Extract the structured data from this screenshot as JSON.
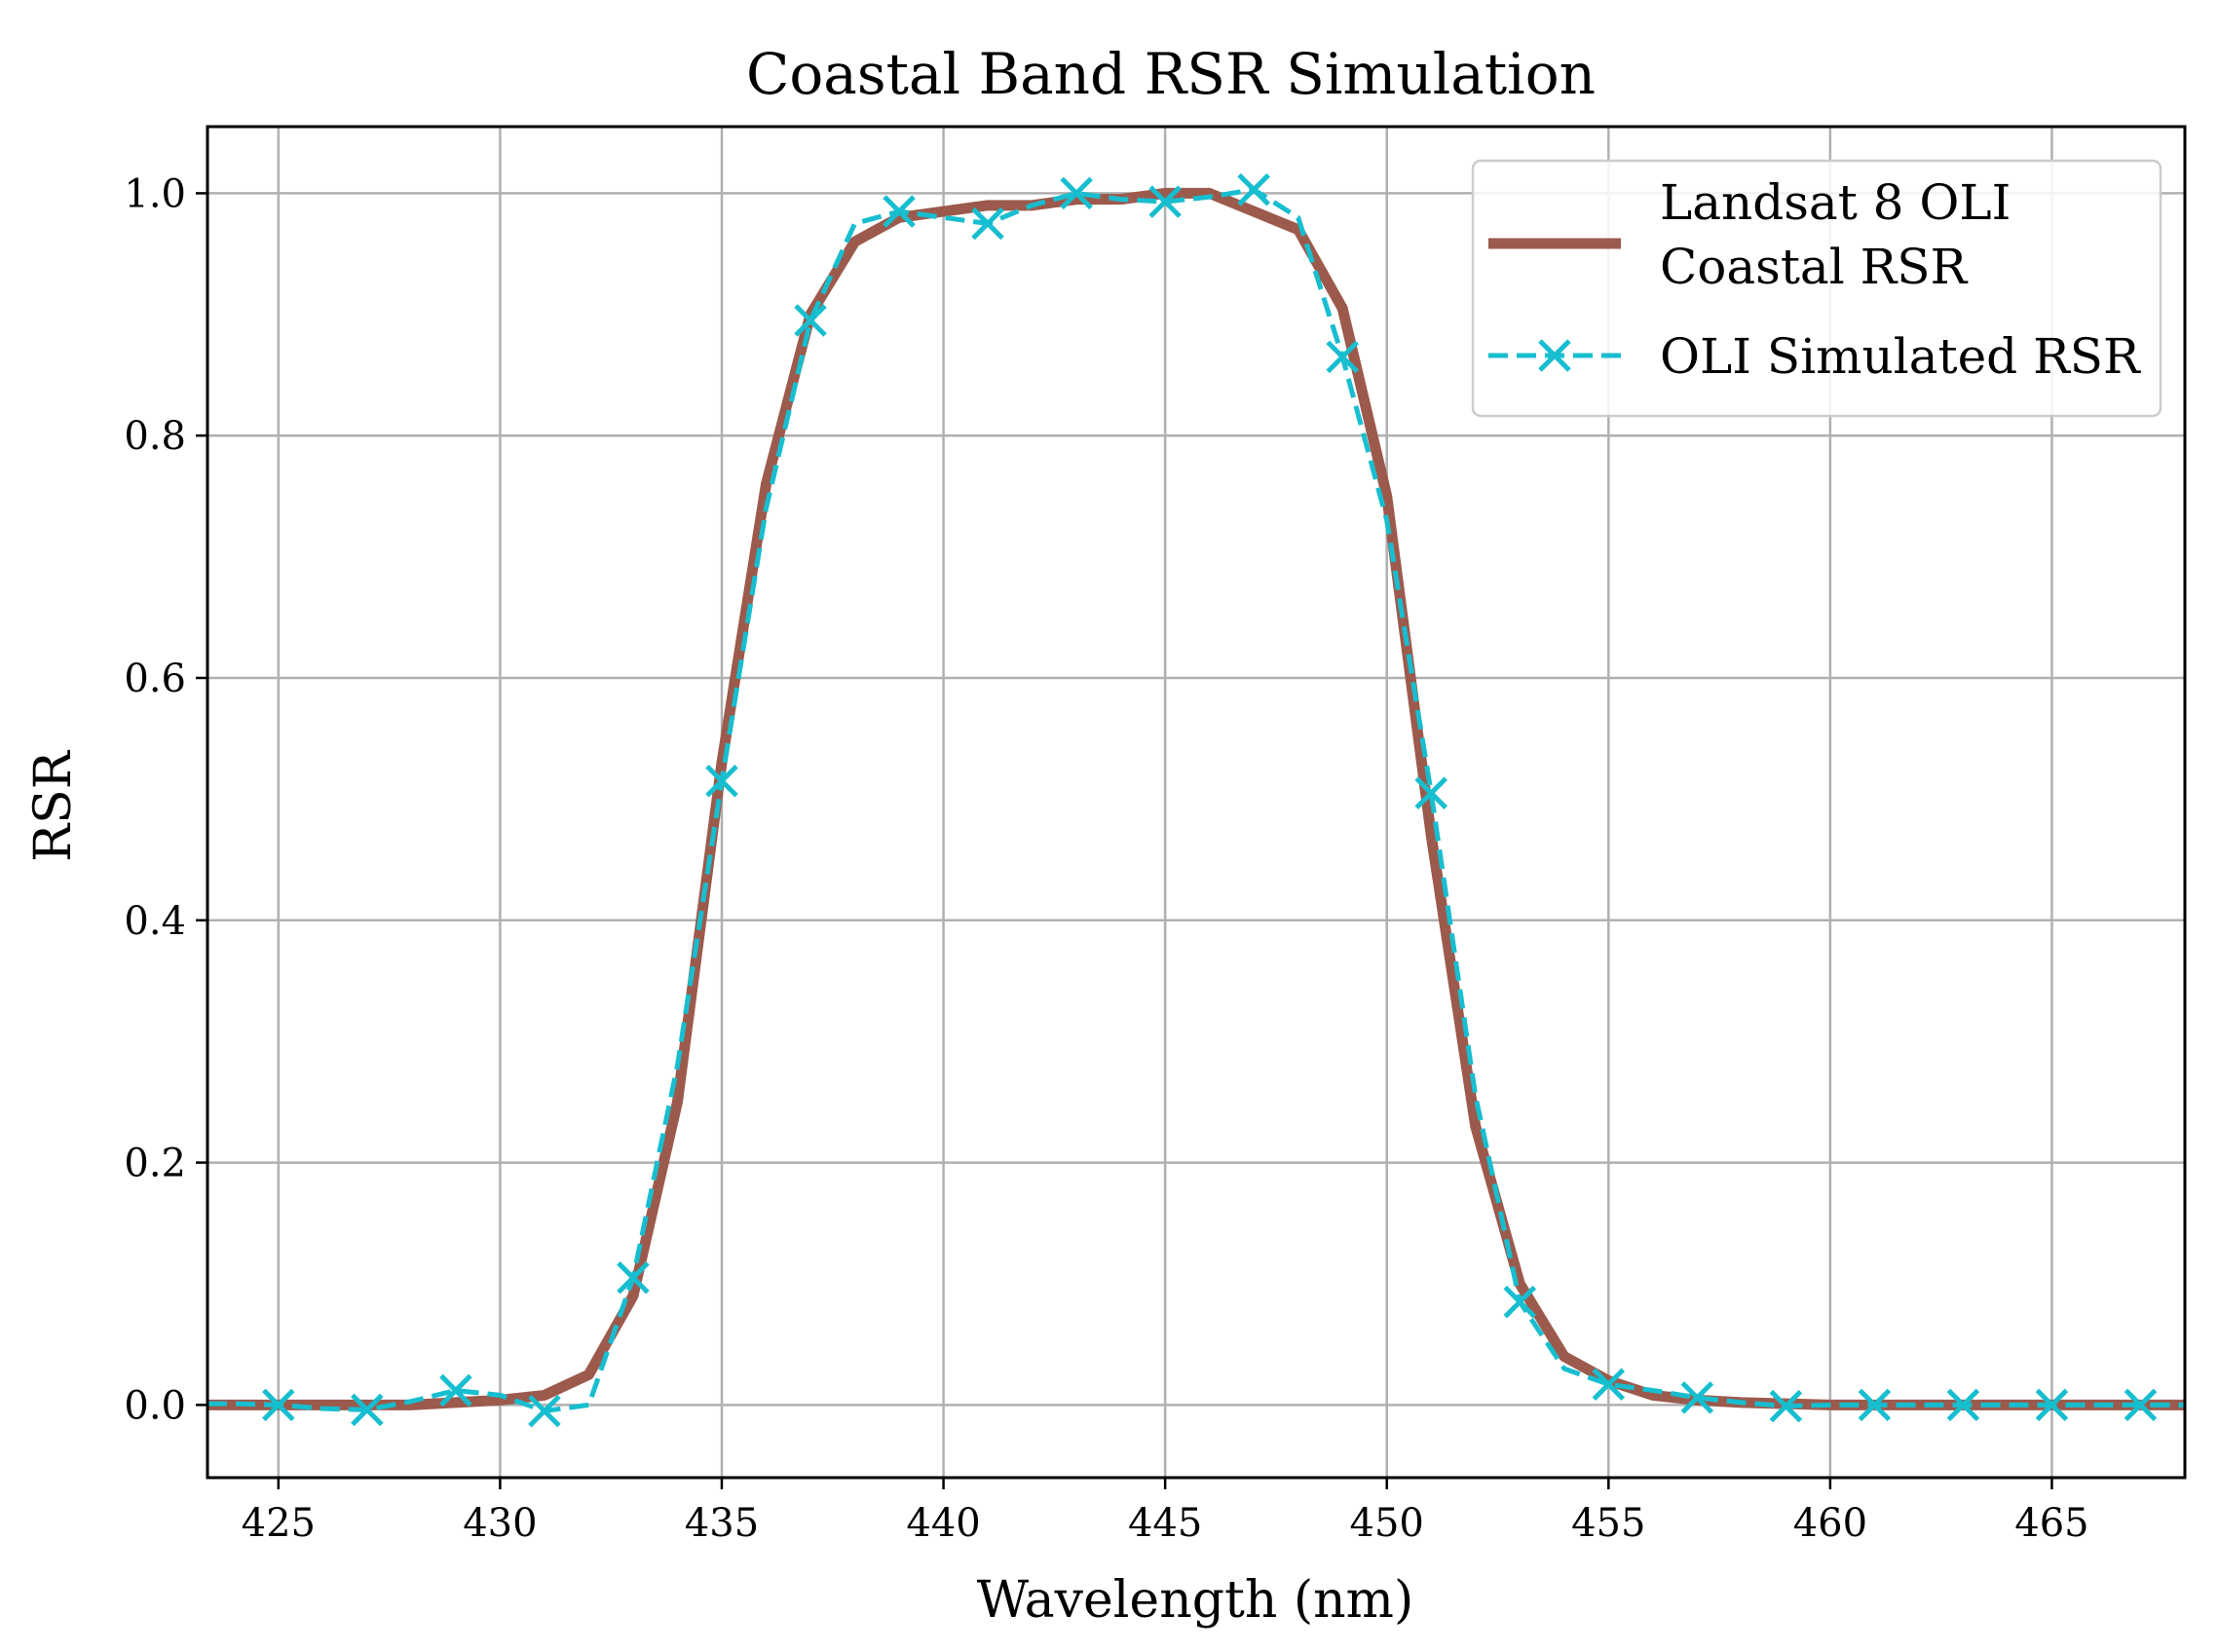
{
  "chart_data": {
    "type": "line",
    "title": "Coastal Band RSR Simulation",
    "xlabel": "Wavelength (nm)",
    "ylabel": "RSR",
    "xlim": [
      423.4,
      468
    ],
    "ylim": [
      -0.06,
      1.055
    ],
    "xticks": [
      425,
      430,
      435,
      440,
      445,
      450,
      455,
      460,
      465
    ],
    "yticks": [
      0.0,
      0.2,
      0.4,
      0.6,
      0.8,
      1.0
    ],
    "xtick_labels": [
      "425",
      "430",
      "435",
      "440",
      "445",
      "450",
      "455",
      "460",
      "465"
    ],
    "ytick_labels": [
      "0.0",
      "0.2",
      "0.4",
      "0.6",
      "0.8",
      "1.0"
    ],
    "grid": true,
    "legend_position": "top-right",
    "series": [
      {
        "name": "Landsat 8 OLI Coastal RSR",
        "legend_lines": [
          "Landsat 8 OLI",
          "Coastal RSR"
        ],
        "color": "#9c5a4c",
        "style": "solid",
        "x": [
          423,
          424,
          425,
          426,
          427,
          428,
          429,
          430,
          431,
          432,
          433,
          434,
          435,
          436,
          437,
          438,
          439,
          440,
          441,
          442,
          443,
          444,
          445,
          446,
          447,
          448,
          449,
          450,
          451,
          452,
          453,
          454,
          455,
          456,
          457,
          458,
          459,
          460,
          461,
          462,
          463,
          464,
          465,
          466,
          467,
          468
        ],
        "y": [
          0.0,
          0.0,
          0.0,
          0.0,
          0.0,
          0.0,
          0.002,
          0.004,
          0.008,
          0.025,
          0.09,
          0.25,
          0.53,
          0.76,
          0.9,
          0.96,
          0.98,
          0.985,
          0.99,
          0.99,
          0.995,
          0.995,
          1.0,
          1.0,
          0.985,
          0.97,
          0.905,
          0.75,
          0.47,
          0.23,
          0.1,
          0.04,
          0.02,
          0.008,
          0.004,
          0.002,
          0.001,
          0.0,
          0.0,
          0.0,
          0.0,
          0.0,
          0.0,
          0.0,
          0.0,
          0.0
        ]
      },
      {
        "name": "OLI Simulated RSR",
        "legend_lines": [
          "OLI Simulated RSR"
        ],
        "color": "#17becf",
        "style": "dashed",
        "marker": "x",
        "line_x": [
          423.4,
          424,
          425,
          426,
          427,
          428,
          429,
          430,
          431,
          432,
          433,
          434,
          435,
          436,
          437,
          438,
          439,
          440,
          441,
          442,
          443,
          444,
          445,
          446,
          447,
          448,
          449,
          450,
          451,
          452,
          453,
          454,
          455,
          456,
          457,
          458,
          459,
          460,
          461,
          462,
          463,
          464,
          465,
          466,
          467,
          468
        ],
        "line_y": [
          0.001,
          0.001,
          0.0,
          -0.003,
          -0.004,
          0.003,
          0.012,
          0.008,
          -0.005,
          0.0,
          0.105,
          0.28,
          0.515,
          0.74,
          0.895,
          0.975,
          0.985,
          0.98,
          0.975,
          0.99,
          1.0,
          0.995,
          0.993,
          0.997,
          1.003,
          0.98,
          0.865,
          0.73,
          0.505,
          0.255,
          0.085,
          0.03,
          0.017,
          0.012,
          0.006,
          0.002,
          -0.001,
          0.0,
          0.0,
          0.0,
          0.0,
          0.0,
          0.0,
          0.0,
          0.0,
          0.0
        ],
        "markers_x": [
          425,
          427,
          429,
          431,
          433,
          435,
          437,
          439,
          441,
          443,
          445,
          447,
          449,
          451,
          453,
          455,
          457,
          459,
          461,
          463,
          465,
          467
        ],
        "markers_y": [
          0.0,
          -0.004,
          0.012,
          -0.005,
          0.105,
          0.515,
          0.895,
          0.985,
          0.975,
          1.0,
          0.993,
          1.003,
          0.865,
          0.505,
          0.085,
          0.017,
          0.006,
          -0.001,
          0.0,
          0.0,
          0.0,
          0.0
        ]
      }
    ]
  }
}
